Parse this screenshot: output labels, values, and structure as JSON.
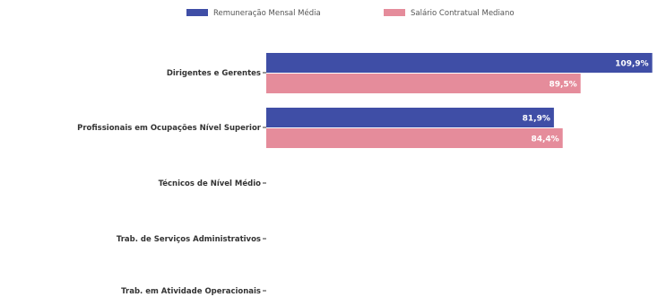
{
  "chart_data": {
    "type": "bar",
    "orientation": "horizontal",
    "categories": [
      "Dirigentes e Gerentes",
      "Profissionais em Ocupações Nível Superior",
      "Técnicos de Nível Médio",
      "Trab. de Serviços Administrativos",
      "Trab. em Atividade Operacionais"
    ],
    "series": [
      {
        "name": "Remuneração Mensal Média",
        "color": "#3f4ea6",
        "values": [
          109.9,
          81.9,
          null,
          null,
          null
        ],
        "labels": [
          "109,9%",
          "81,9%",
          "",
          "",
          ""
        ]
      },
      {
        "name": "Salário Contratual Mediano",
        "color": "#e58c9b",
        "values": [
          89.5,
          84.4,
          null,
          null,
          null
        ],
        "labels": [
          "89,5%",
          "84,4%",
          "",
          "",
          ""
        ]
      }
    ],
    "xlim": [
      0,
      110
    ],
    "grid": false,
    "legend_position": "top-center"
  }
}
